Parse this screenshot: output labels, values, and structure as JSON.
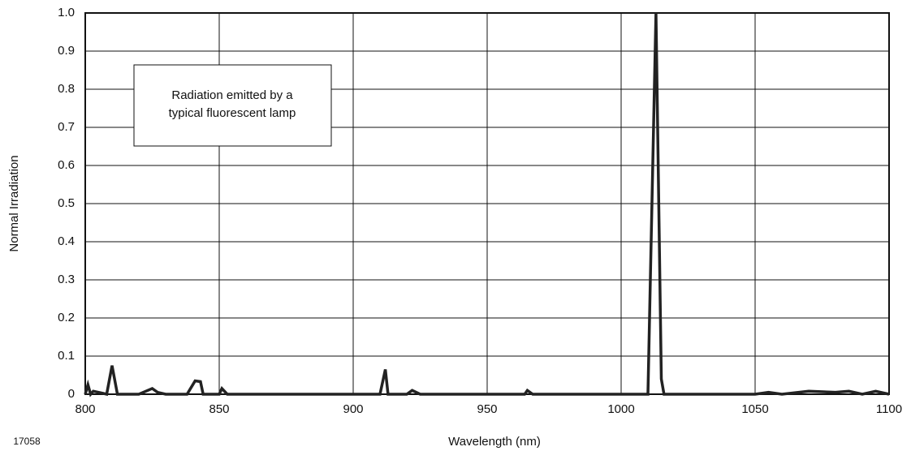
{
  "chart_data": {
    "type": "line",
    "x": [
      800,
      801,
      802,
      803,
      805,
      808,
      810,
      812,
      820,
      825,
      827,
      830,
      838,
      841,
      843,
      844,
      850,
      851,
      853,
      880,
      910,
      912,
      913,
      920,
      922,
      925,
      964,
      965,
      967,
      1010,
      1013,
      1015,
      1016,
      1050,
      1055,
      1060,
      1070,
      1080,
      1085,
      1090,
      1095,
      1100
    ],
    "values": [
      0,
      0.025,
      0,
      0.008,
      0.005,
      0,
      0.075,
      0,
      0,
      0.015,
      0.005,
      0,
      0,
      0.035,
      0.033,
      0,
      0,
      0.015,
      0,
      0,
      0,
      0.065,
      0,
      0,
      0.01,
      0,
      0,
      0.01,
      0,
      0,
      1,
      0.04,
      0,
      0,
      0.005,
      0,
      0.008,
      0.005,
      0.008,
      0,
      0.008,
      0
    ],
    "color": "#222222",
    "xlim": [
      800,
      1100
    ],
    "xticks": [
      800,
      850,
      900,
      950,
      1000,
      1050,
      1100
    ],
    "ylim": [
      0,
      1
    ],
    "yticks": [
      0,
      0.1,
      0.2,
      0.3,
      0.4,
      0.5,
      0.6,
      0.7,
      0.8,
      0.9,
      {
        "value": 1,
        "label": "1.0"
      }
    ],
    "grid": true,
    "xlabel": "Wavelength (nm)",
    "ylabel": "Normal Irradiation",
    "annotation": [
      "Radiation emitted by a",
      "typical fluorescent lamp"
    ],
    "figure_id": "17058"
  }
}
